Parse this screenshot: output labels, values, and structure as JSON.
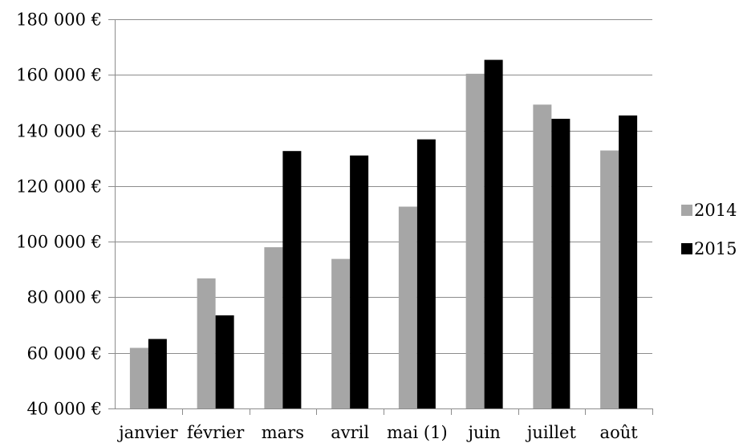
{
  "chart_data": {
    "type": "bar",
    "categories": [
      "janvier",
      "février",
      "mars",
      "avril",
      "mai (1)",
      "juin",
      "juillet",
      "août"
    ],
    "series": [
      {
        "name": "2014",
        "color": "#a6a6a6",
        "values": [
          61800,
          86800,
          98000,
          93800,
          112600,
          160400,
          149300,
          132800
        ]
      },
      {
        "name": "2015",
        "color": "#000000",
        "values": [
          65000,
          73500,
          132600,
          131000,
          136800,
          165400,
          144200,
          145400
        ]
      }
    ],
    "y_ticks": [
      {
        "value": 40000,
        "label": "40 000 €"
      },
      {
        "value": 60000,
        "label": "60 000 €"
      },
      {
        "value": 80000,
        "label": "80 000 €"
      },
      {
        "value": 100000,
        "label": "100 000 €"
      },
      {
        "value": 120000,
        "label": "120 000 €"
      },
      {
        "value": 140000,
        "label": "140 000 €"
      },
      {
        "value": 160000,
        "label": "160 000 €"
      },
      {
        "value": 180000,
        "label": "180 000 €"
      }
    ],
    "ylim": [
      40000,
      180000
    ],
    "grid": true,
    "legend_position": "right",
    "title": "",
    "xlabel": "",
    "ylabel": ""
  }
}
